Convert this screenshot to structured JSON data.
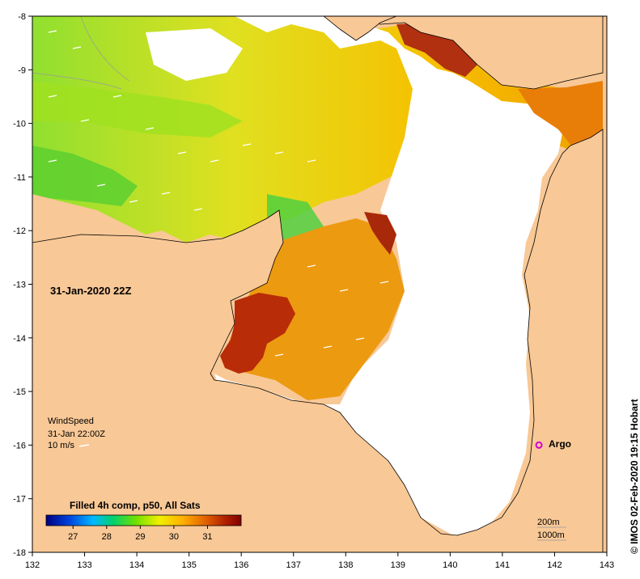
{
  "map": {
    "lon_range": [
      132,
      143
    ],
    "lat_range": [
      -18,
      -8
    ],
    "x_ticks": [
      "132",
      "133",
      "134",
      "135",
      "136",
      "137",
      "138",
      "139",
      "140",
      "141",
      "142",
      "143"
    ],
    "y_ticks": [
      "-8",
      "-9",
      "-10",
      "-11",
      "-12",
      "-13",
      "-14",
      "-15",
      "-16",
      "-17",
      "-18"
    ]
  },
  "datetime_label": "31-Jan-2020 22Z",
  "wind_legend": {
    "title": "WindSpeed",
    "time": "31-Jan 22:00Z",
    "scale": "10 m/s"
  },
  "colorbar": {
    "title": "Filled 4h comp, p50, All Sats",
    "range": [
      26.2,
      32.0
    ],
    "ticks": [
      "27",
      "28",
      "29",
      "30",
      "31"
    ]
  },
  "argo": {
    "label": "Argo",
    "lon": 141.7,
    "lat": -16.0,
    "color": "#d200d2"
  },
  "contours": {
    "shallow": "200m",
    "deep": "1000m"
  },
  "credit": "© IMOS 02-Feb-2020 19:15 Hobart",
  "colors": {
    "land": "#f8c896",
    "no_data": "#ffffff",
    "sst_low": "#000080",
    "sst_high": "#800000"
  }
}
